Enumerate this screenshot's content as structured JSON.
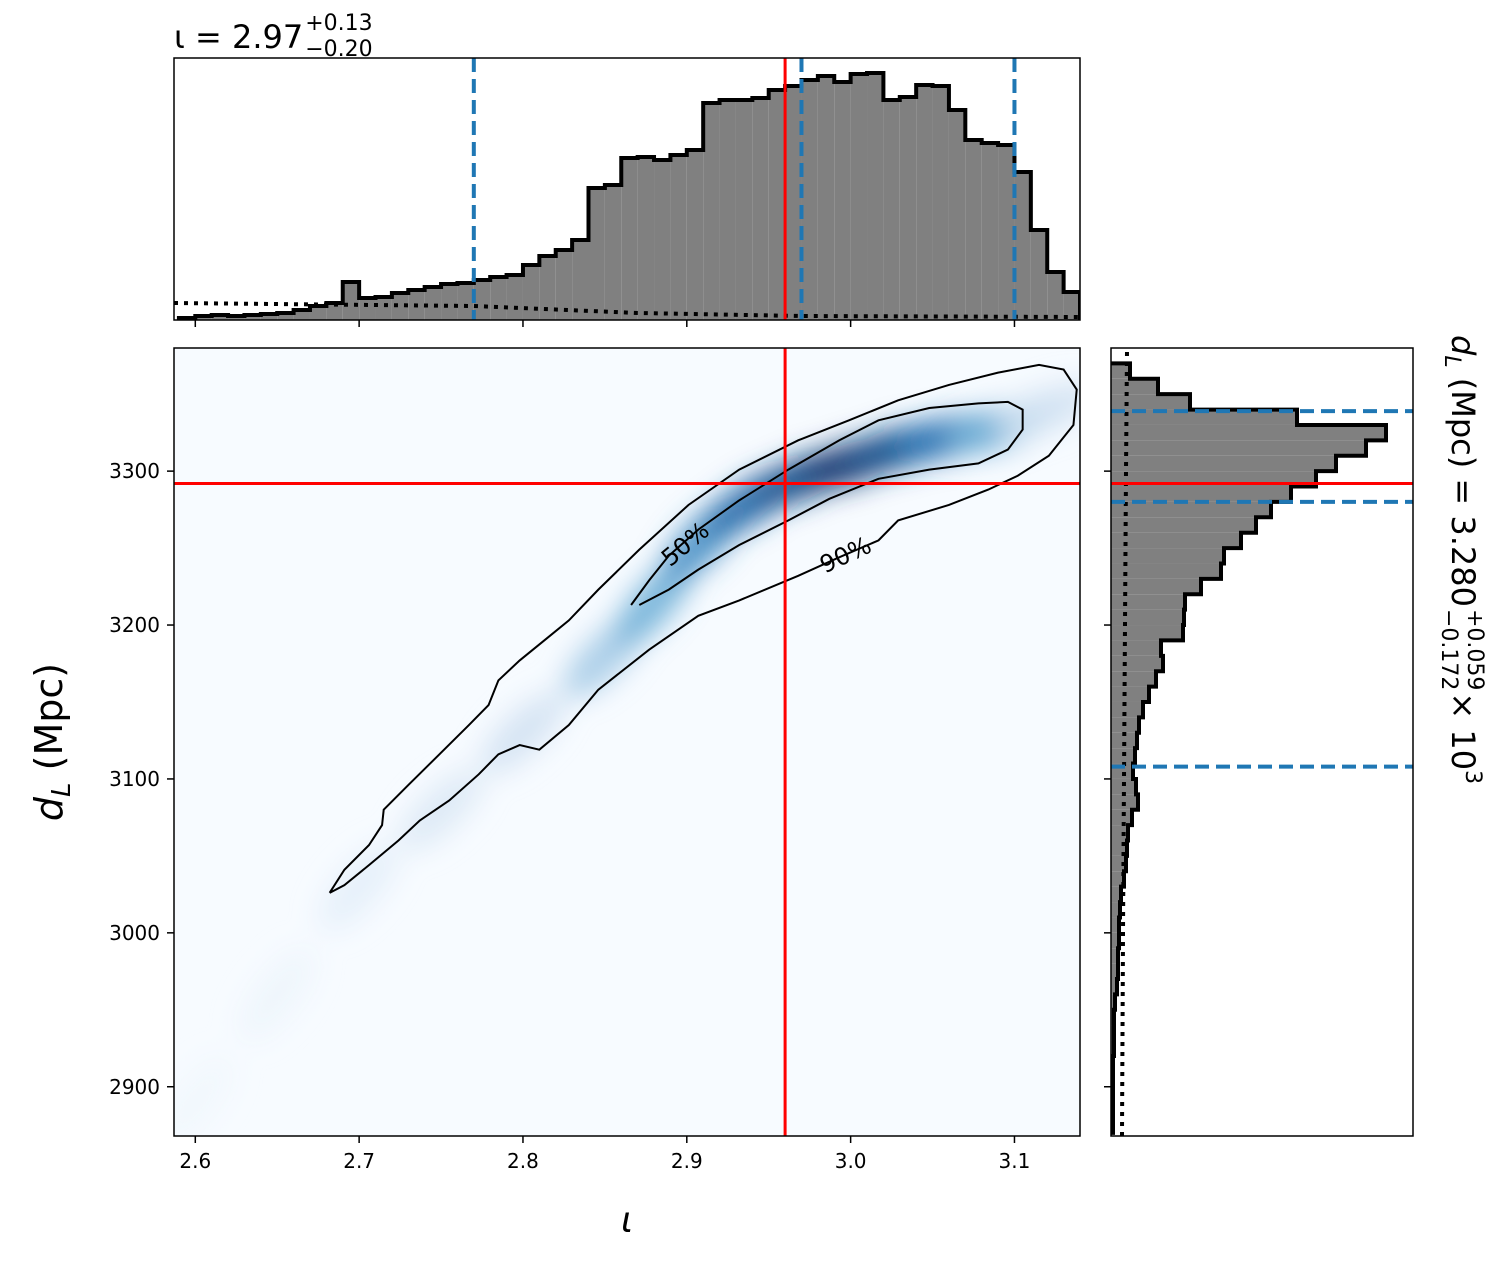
{
  "chart_data": {
    "type": "corner",
    "x_label": "ι",
    "y_label": {
      "symbol": "d",
      "subscript": "L",
      "unit": " (Mpc)"
    },
    "xlim": [
      2.587,
      3.14
    ],
    "ylim": [
      2868,
      3380
    ],
    "xticks": [
      2.6,
      2.7,
      2.8,
      2.9,
      {
        "value": 3.0,
        "label": "3.0"
      },
      3.1
    ],
    "yticks": [
      2900,
      3000,
      3100,
      3200,
      3300
    ],
    "truth": {
      "x": 2.96,
      "y": 3292,
      "color": "#ff0000"
    },
    "top_title": {
      "text": "ι = 2.97",
      "sup": "+0.13",
      "sub": "−0.20"
    },
    "right_title": {
      "symbol": "d",
      "subscript": "L",
      "text": " (Mpc) = 3.280",
      "sup": "+0.059",
      "sub": "−0.172",
      "tail": " × 10",
      "exponent": "3"
    },
    "marginal_x": {
      "bins": [
        2.59,
        2.6,
        2.61,
        2.62,
        2.63,
        2.64,
        2.65,
        2.66,
        2.67,
        2.68,
        2.69,
        2.7,
        2.71,
        2.72,
        2.73,
        2.74,
        2.75,
        2.76,
        2.77,
        2.78,
        2.79,
        2.8,
        2.81,
        2.82,
        2.83,
        2.84,
        2.85,
        2.86,
        2.87,
        2.88,
        2.89,
        2.9,
        2.91,
        2.92,
        2.93,
        2.94,
        2.95,
        2.96,
        2.97,
        2.98,
        2.99,
        3.0,
        3.01,
        3.02,
        3.03,
        3.04,
        3.05,
        3.06,
        3.07,
        3.08,
        3.09,
        3.1,
        3.11,
        3.12,
        3.13,
        3.14
      ],
      "counts": [
        2,
        4,
        5,
        4,
        5,
        6,
        7,
        10,
        14,
        17,
        38,
        22,
        23,
        27,
        30,
        33,
        36,
        37,
        40,
        43,
        45,
        55,
        64,
        70,
        80,
        132,
        135,
        162,
        163,
        160,
        165,
        170,
        217,
        220,
        220,
        222,
        230,
        234,
        240,
        244,
        238,
        246,
        247,
        220,
        223,
        235,
        234,
        210,
        180,
        177,
        175,
        148,
        90,
        48,
        28
      ],
      "ylim": [
        0,
        262
      ],
      "color": "#808080",
      "quantiles": [
        2.77,
        2.97,
        3.1
      ],
      "quantile_color": "#1f77b4",
      "prior": {
        "x": [
          2.587,
          2.77,
          2.87,
          2.97,
          3.14
        ],
        "values": [
          17,
          14,
          7,
          4,
          3
        ]
      }
    },
    "marginal_y": {
      "bins": [
        2870,
        2880,
        2890,
        2900,
        2910,
        2920,
        2930,
        2940,
        2950,
        2960,
        2970,
        2980,
        2990,
        3000,
        3010,
        3020,
        3030,
        3040,
        3050,
        3060,
        3070,
        3080,
        3090,
        3100,
        3110,
        3120,
        3130,
        3140,
        3150,
        3160,
        3170,
        3180,
        3190,
        3200,
        3210,
        3220,
        3230,
        3240,
        3250,
        3260,
        3270,
        3280,
        3290,
        3300,
        3310,
        3320,
        3330,
        3340,
        3350,
        3360,
        3370
      ],
      "counts": [
        2,
        2,
        2,
        2,
        2,
        3,
        3,
        3,
        4,
        6,
        7,
        7,
        8,
        8,
        9,
        10,
        13,
        15,
        16,
        17,
        21,
        27,
        25,
        22,
        24,
        26,
        28,
        32,
        38,
        45,
        52,
        50,
        72,
        73,
        74,
        90,
        110,
        113,
        130,
        145,
        160,
        180,
        205,
        225,
        255,
        275,
        186,
        79,
        47,
        19
      ],
      "xlim": [
        0,
        302
      ],
      "color": "#808080",
      "quantiles": [
        3108,
        3280,
        3339
      ],
      "quantile_color": "#1f77b4",
      "prior": {
        "y": [
          2868,
          3000,
          3100,
          3200,
          3300,
          3378
        ],
        "values": [
          11,
          12,
          13,
          14,
          15,
          16
        ]
      }
    },
    "density": {
      "colormap": "Blues",
      "x": [
        2.6,
        2.65,
        2.7,
        2.75,
        2.8,
        2.85,
        2.88,
        2.91,
        2.94,
        2.97,
        3.0,
        3.03,
        3.06,
        3.09,
        3.12
      ],
      "y": [
        2890,
        2960,
        3030,
        3080,
        3130,
        3180,
        3215,
        3255,
        3280,
        3295,
        3305,
        3315,
        3322,
        3328,
        3340
      ],
      "intensity": [
        0.03,
        0.05,
        0.1,
        0.15,
        0.2,
        0.35,
        0.5,
        0.65,
        0.8,
        0.9,
        1.0,
        0.9,
        0.75,
        0.5,
        0.2
      ]
    },
    "contours": [
      {
        "label": "50%",
        "x": [
          2.866,
          2.877,
          2.889,
          2.907,
          2.932,
          2.962,
          2.993,
          3.017,
          3.048,
          3.078,
          3.096,
          3.105,
          3.105,
          3.096,
          3.078,
          3.048,
          3.017,
          2.987,
          2.962,
          2.932,
          2.907,
          2.889,
          2.871
        ],
        "y": [
          3213,
          3229,
          3245,
          3262,
          3281,
          3301,
          3320,
          3333,
          3341,
          3344,
          3345,
          3340,
          3327,
          3314,
          3305,
          3301,
          3295,
          3282,
          3268,
          3252,
          3236,
          3223,
          3213
        ]
      },
      {
        "label": "90%",
        "x": [
          2.682,
          2.691,
          2.706,
          2.714,
          2.715,
          2.73,
          2.749,
          2.767,
          2.779,
          2.785,
          2.798,
          2.813,
          2.828,
          2.846,
          2.871,
          2.901,
          2.932,
          2.968,
          2.999,
          3.029,
          3.06,
          3.09,
          3.115,
          3.13,
          3.138,
          3.136,
          3.121,
          3.102,
          3.084,
          3.06,
          3.029,
          3.017,
          2.993,
          2.968,
          2.932,
          2.907,
          2.877,
          2.846,
          2.828,
          2.81,
          2.798,
          2.785,
          2.773,
          2.755,
          2.737,
          2.724,
          2.706,
          2.691,
          2.682
        ],
        "y": [
          3026,
          3041,
          3057,
          3070,
          3080,
          3096,
          3116,
          3135,
          3148,
          3164,
          3177,
          3190,
          3203,
          3223,
          3249,
          3278,
          3301,
          3320,
          3333,
          3346,
          3356,
          3364,
          3369,
          3366,
          3353,
          3330,
          3310,
          3297,
          3288,
          3278,
          3268,
          3255,
          3244,
          3232,
          3216,
          3206,
          3184,
          3158,
          3135,
          3119,
          3122,
          3116,
          3103,
          3086,
          3073,
          3060,
          3044,
          3031,
          3026
        ]
      }
    ]
  }
}
